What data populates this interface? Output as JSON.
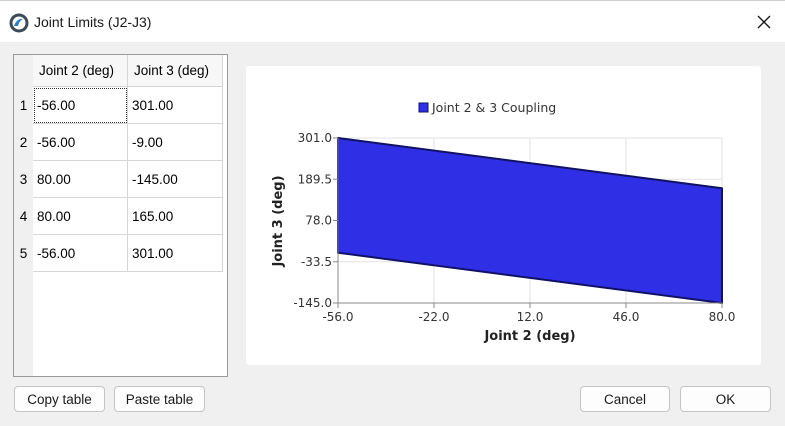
{
  "window": {
    "title": "Joint Limits (J2-J3)",
    "close_glyph": "✕"
  },
  "table": {
    "columns": [
      "Joint 2 (deg)",
      "Joint 3 (deg)"
    ],
    "row_numbers": [
      "1",
      "2",
      "3",
      "4",
      "5"
    ],
    "rows": [
      [
        "-56.00",
        "301.00"
      ],
      [
        "-56.00",
        "-9.00"
      ],
      [
        "80.00",
        "-145.00"
      ],
      [
        "80.00",
        "165.00"
      ],
      [
        "-56.00",
        "301.00"
      ]
    ]
  },
  "buttons": {
    "copy_table": "Copy table",
    "paste_table": "Paste table",
    "cancel": "Cancel",
    "ok": "OK"
  },
  "chart_data": {
    "type": "area",
    "title": "",
    "xlabel": "Joint 2 (deg)",
    "ylabel": "Joint 3 (deg)",
    "xlim": [
      -56.0,
      80.0
    ],
    "ylim": [
      -145.0,
      301.0
    ],
    "x_ticks": [
      "-56.0",
      "-22.0",
      "12.0",
      "46.0",
      "80.0"
    ],
    "y_ticks": [
      "301.0",
      "189.5",
      "78.0",
      "-33.5",
      "-145.0"
    ],
    "grid": true,
    "legend_position": "top",
    "series": [
      {
        "name": "Joint 2 & 3 Coupling",
        "points": [
          [
            -56,
            301
          ],
          [
            -56,
            -9
          ],
          [
            80,
            -145
          ],
          [
            80,
            165
          ],
          [
            -56,
            301
          ]
        ],
        "fill_color": "#2f2fe6",
        "line_color": "#111166"
      }
    ]
  }
}
